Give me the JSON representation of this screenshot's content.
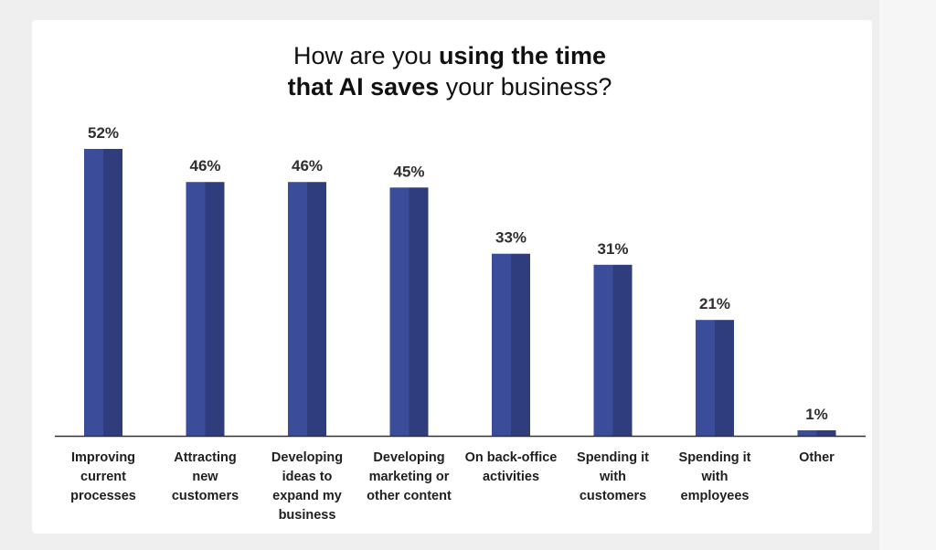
{
  "title": {
    "line1_regular": "How are you ",
    "line1_bold": "using the time",
    "line2_bold": "that AI saves",
    "line2_regular": " your business?"
  },
  "colors": {
    "bar_dark": "#2f3d7c",
    "bar_light": "#3a4c9a",
    "axis": "#333333"
  },
  "chart_data": {
    "type": "bar",
    "title": "How are you using the time that AI saves your business?",
    "categories": [
      "Improving current processes",
      "Attracting new customers",
      "Developing ideas to expand my business",
      "Developing marketing or other content",
      "On back-office activities",
      "Spending it with customers",
      "Spending it with employees",
      "Other"
    ],
    "category_lines": [
      [
        "Improving",
        "current",
        "processes"
      ],
      [
        "Attracting",
        "new",
        "customers"
      ],
      [
        "Developing",
        "ideas to",
        "expand my",
        "business"
      ],
      [
        "Developing",
        "marketing or",
        "other content"
      ],
      [
        "On back-office",
        "activities"
      ],
      [
        "Spending it",
        "with",
        "customers"
      ],
      [
        "Spending it",
        "with",
        "employees"
      ],
      [
        "Other"
      ]
    ],
    "values": [
      52,
      46,
      46,
      45,
      33,
      31,
      21,
      1
    ],
    "value_labels": [
      "52%",
      "46%",
      "46%",
      "45%",
      "33%",
      "31%",
      "21%",
      "1%"
    ],
    "ylim": [
      0,
      52
    ],
    "grid": false,
    "xlabel": "",
    "ylabel": ""
  }
}
